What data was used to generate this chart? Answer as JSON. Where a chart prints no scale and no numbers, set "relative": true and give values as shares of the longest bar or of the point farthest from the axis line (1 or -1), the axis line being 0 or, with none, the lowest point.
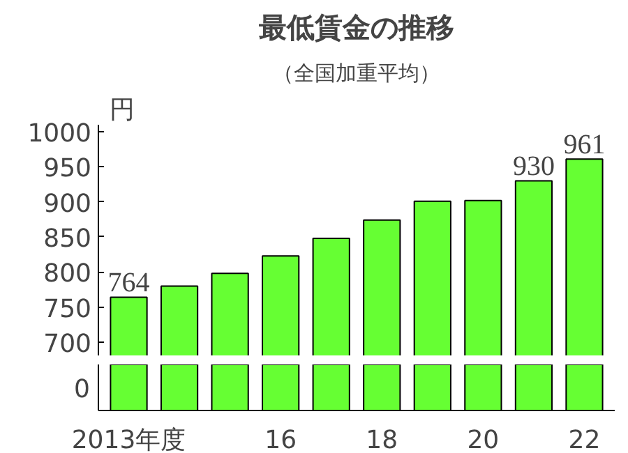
{
  "chart_data": [
    {
      "type": "bar",
      "title": "最低賃金の推移",
      "subtitle": "（全国加重平均）",
      "ylabel": "円",
      "categories": [
        null,
        null,
        null,
        null,
        null,
        null,
        null,
        null,
        null,
        null
      ],
      "values": [
        764,
        780,
        798,
        823,
        848,
        874,
        901,
        902,
        930,
        961
      ],
      "value_labels": [
        "764",
        null,
        null,
        null,
        null,
        null,
        null,
        null,
        "930",
        "961"
      ],
      "color": "#66ff33",
      "ylim": [
        680,
        1010
      ],
      "yticks": [
        700,
        750,
        800,
        850,
        900,
        950,
        1000
      ],
      "tick_labels": "y"
    },
    {
      "type": "bar",
      "categories": [
        "2013年度",
        null,
        null,
        "16",
        null,
        "18",
        null,
        "20",
        null,
        "22"
      ],
      "values": [
        1,
        1,
        1,
        1,
        1,
        1,
        1,
        1,
        1,
        1
      ],
      "color": "#66ff33",
      "relative": true,
      "annotations": [
        "0"
      ]
    }
  ]
}
